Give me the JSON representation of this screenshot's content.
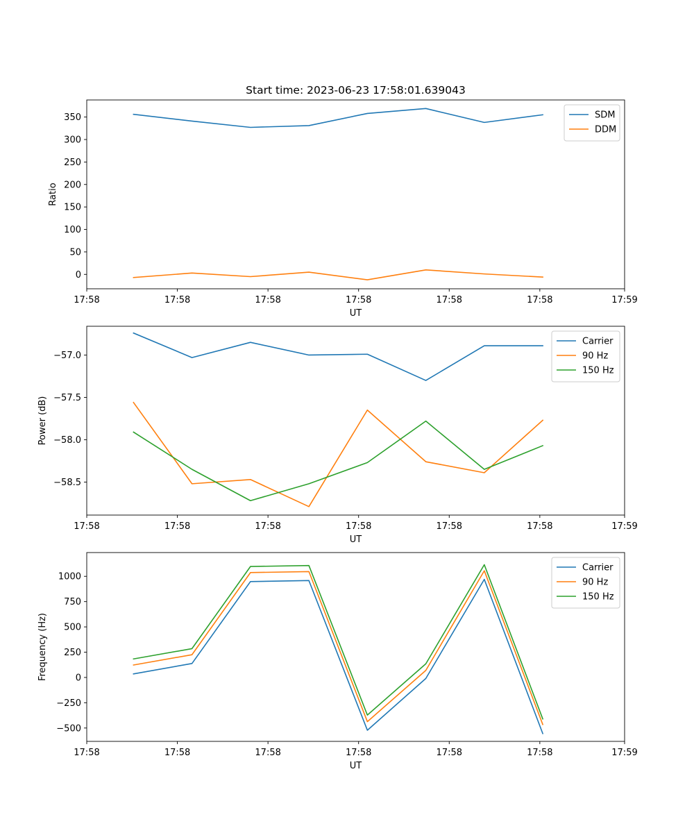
{
  "chart_data": [
    {
      "type": "line",
      "title": "Start time: 2023-06-23 17:58:01.639043",
      "xlabel": "UT",
      "ylabel": "Ratio",
      "x": [
        1,
        2,
        3,
        4,
        5,
        6,
        7,
        8
      ],
      "xlim": [
        0.2,
        9.4
      ],
      "xticks": [
        0.2,
        1.75,
        3.3,
        4.85,
        6.4,
        7.95,
        9.4
      ],
      "xtick_labels": [
        "17:58",
        "17:58",
        "17:58",
        "17:58",
        "17:58",
        "17:58",
        "17:59"
      ],
      "ylim": [
        -32,
        388
      ],
      "yticks": [
        0,
        50,
        100,
        150,
        200,
        250,
        300,
        350
      ],
      "ytick_labels": [
        "0",
        "50",
        "100",
        "150",
        "200",
        "250",
        "300",
        "350"
      ],
      "legend_position": "top-right",
      "grid": false,
      "series": [
        {
          "name": "SDM",
          "color": "#1f77b4",
          "values": [
            356,
            341,
            327,
            331,
            358,
            369,
            338,
            355
          ]
        },
        {
          "name": "DDM",
          "color": "#ff7f0e",
          "values": [
            -7,
            3,
            -5,
            5,
            -12,
            10,
            1,
            -6
          ]
        }
      ]
    },
    {
      "type": "line",
      "title": "",
      "xlabel": "UT",
      "ylabel": "Power (dB)",
      "x": [
        1,
        2,
        3,
        4,
        5,
        6,
        7,
        8
      ],
      "xlim": [
        0.2,
        9.4
      ],
      "xticks": [
        0.2,
        1.75,
        3.3,
        4.85,
        6.4,
        7.95,
        9.4
      ],
      "xtick_labels": [
        "17:58",
        "17:58",
        "17:58",
        "17:58",
        "17:58",
        "17:58",
        "17:59"
      ],
      "ylim": [
        -58.89,
        -56.66
      ],
      "yticks": [
        -57.0,
        -57.5,
        -58.0,
        -58.5
      ],
      "ytick_labels": [
        "−57.0",
        "−57.5",
        "−58.0",
        "−58.5"
      ],
      "legend_position": "top-right",
      "grid": false,
      "series": [
        {
          "name": "Carrier",
          "color": "#1f77b4",
          "values": [
            -56.74,
            -57.03,
            -56.85,
            -57.0,
            -56.99,
            -57.3,
            -56.89,
            -56.89
          ]
        },
        {
          "name": "90 Hz",
          "color": "#ff7f0e",
          "values": [
            -57.56,
            -58.52,
            -58.47,
            -58.79,
            -57.65,
            -58.26,
            -58.39,
            -57.77
          ]
        },
        {
          "name": "150 Hz",
          "color": "#2ca02c",
          "values": [
            -57.91,
            -58.35,
            -58.72,
            -58.52,
            -58.27,
            -57.78,
            -58.35,
            -58.07
          ]
        }
      ]
    },
    {
      "type": "line",
      "title": "",
      "xlabel": "UT",
      "ylabel": "Frequency (Hz)",
      "x": [
        1,
        2,
        3,
        4,
        5,
        6,
        7,
        8
      ],
      "xlim": [
        0.2,
        9.4
      ],
      "xticks": [
        0.2,
        1.75,
        3.3,
        4.85,
        6.4,
        7.95,
        9.4
      ],
      "xtick_labels": [
        "17:58",
        "17:58",
        "17:58",
        "17:58",
        "17:58",
        "17:58",
        "17:59"
      ],
      "ylim": [
        -632,
        1235
      ],
      "yticks": [
        -500,
        -250,
        0,
        250,
        500,
        750,
        1000
      ],
      "ytick_labels": [
        "−500",
        "−250",
        "0",
        "250",
        "500",
        "750",
        "1000"
      ],
      "legend_position": "top-right",
      "grid": false,
      "series": [
        {
          "name": "Carrier",
          "color": "#1f77b4",
          "values": [
            35,
            138,
            948,
            958,
            -522,
            -10,
            970,
            -555
          ]
        },
        {
          "name": "90 Hz",
          "color": "#ff7f0e",
          "values": [
            123,
            225,
            1037,
            1047,
            -437,
            70,
            1055,
            -465
          ]
        },
        {
          "name": "150 Hz",
          "color": "#2ca02c",
          "values": [
            183,
            285,
            1097,
            1107,
            -372,
            135,
            1115,
            -410
          ]
        }
      ]
    }
  ]
}
